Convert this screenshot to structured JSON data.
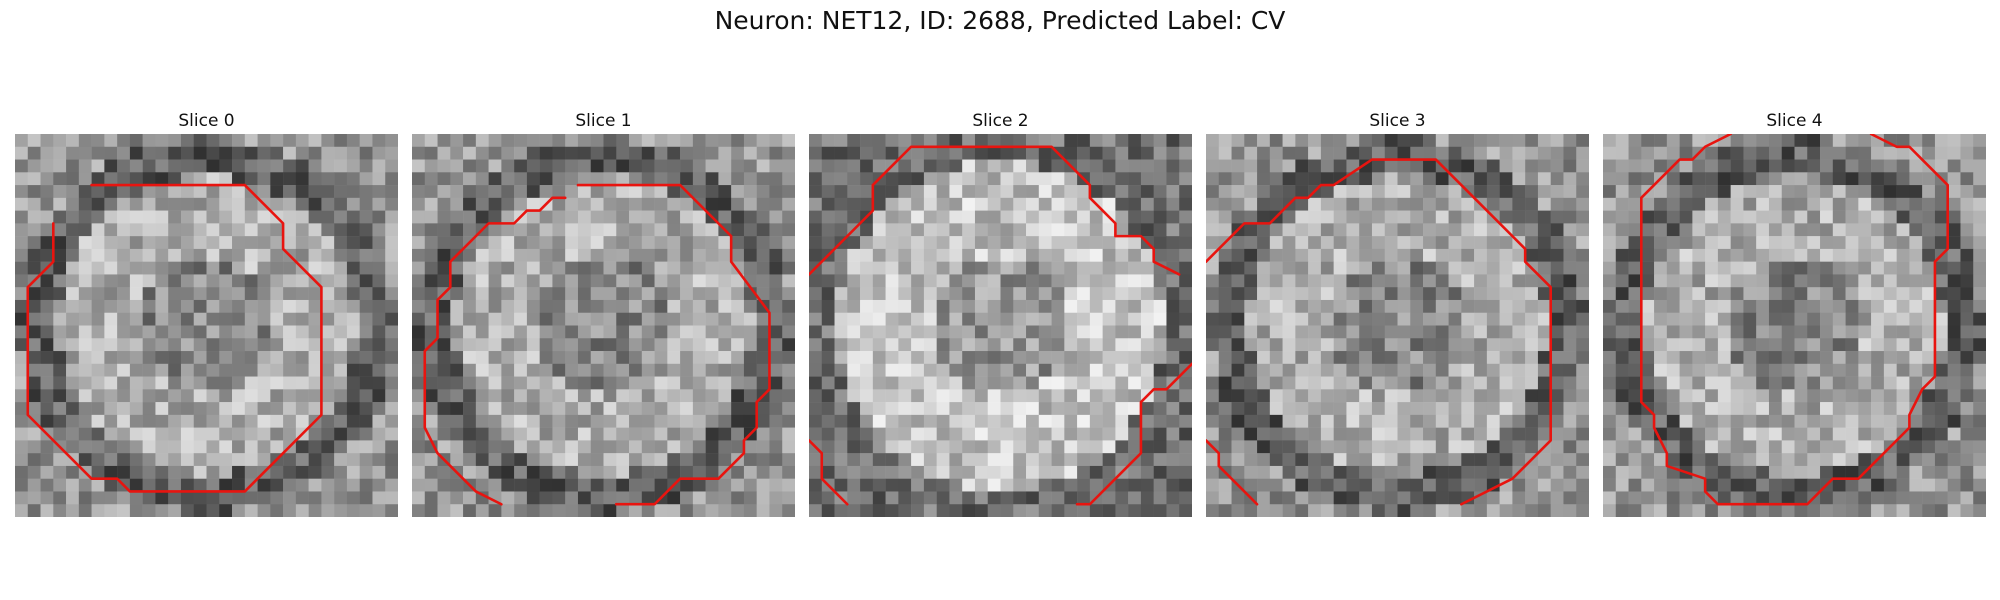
{
  "figure": {
    "title": "Neuron: NET12, ID: 2688, Predicted Label: CV"
  },
  "grid_size": 30,
  "contour_color": "#e8140f",
  "panels": [
    {
      "title": "Slice 0",
      "ring_color": "dark",
      "contours": [
        [
          [
            6,
            4
          ],
          [
            18,
            4
          ],
          [
            21,
            7
          ],
          [
            21,
            9
          ],
          [
            24,
            12
          ],
          [
            24,
            22
          ],
          [
            18,
            28
          ],
          [
            9,
            28
          ],
          [
            8,
            27
          ],
          [
            6,
            27
          ],
          [
            1,
            22
          ],
          [
            1,
            12
          ],
          [
            3,
            10
          ],
          [
            3,
            7
          ]
        ]
      ]
    },
    {
      "title": "Slice 1",
      "ring_color": "dark",
      "contours": [
        [
          [
            13,
            4
          ],
          [
            21,
            4
          ],
          [
            25,
            8
          ],
          [
            25,
            10
          ],
          [
            28,
            14
          ],
          [
            28,
            20
          ],
          [
            27,
            21
          ],
          [
            27,
            23
          ],
          [
            26,
            24
          ],
          [
            26,
            25
          ],
          [
            24,
            27
          ],
          [
            21,
            27
          ],
          [
            19,
            29
          ],
          [
            18,
            29
          ],
          [
            16,
            29
          ]
        ],
        [
          [
            7,
            29
          ],
          [
            5,
            28
          ],
          [
            2,
            25
          ],
          [
            1,
            23
          ],
          [
            1,
            17
          ],
          [
            2,
            16
          ],
          [
            2,
            13
          ],
          [
            3,
            12
          ],
          [
            3,
            10
          ],
          [
            4,
            9
          ],
          [
            6,
            7
          ],
          [
            8,
            7
          ],
          [
            9,
            6
          ],
          [
            10,
            6
          ],
          [
            11,
            5
          ],
          [
            12,
            5
          ]
        ]
      ]
    },
    {
      "title": "Slice 2",
      "ring_color": "light",
      "contours": [
        [
          [
            0,
            11
          ],
          [
            2,
            9
          ],
          [
            4,
            7
          ],
          [
            5,
            6
          ],
          [
            5,
            4
          ],
          [
            8,
            1
          ],
          [
            19,
            1
          ],
          [
            22,
            4
          ],
          [
            22,
            5
          ],
          [
            23,
            6
          ],
          [
            24,
            7
          ],
          [
            24,
            8
          ],
          [
            26,
            8
          ],
          [
            27,
            9
          ],
          [
            27,
            10
          ],
          [
            29,
            11
          ]
        ],
        [
          [
            21,
            29
          ],
          [
            22,
            29
          ],
          [
            25,
            26
          ],
          [
            26,
            25
          ],
          [
            26,
            21
          ],
          [
            27,
            20
          ],
          [
            28,
            20
          ],
          [
            30,
            18
          ]
        ],
        [
          [
            0,
            24
          ],
          [
            1,
            25
          ],
          [
            1,
            27
          ],
          [
            3,
            29
          ]
        ]
      ]
    },
    {
      "title": "Slice 3",
      "ring_color": "dark",
      "contours": [
        [
          [
            0,
            10
          ],
          [
            3,
            7
          ],
          [
            5,
            7
          ],
          [
            6,
            6
          ],
          [
            7,
            5
          ],
          [
            8,
            5
          ],
          [
            9,
            4
          ],
          [
            10,
            4
          ],
          [
            13,
            2
          ],
          [
            18,
            2
          ],
          [
            21,
            5
          ],
          [
            22,
            6
          ],
          [
            24,
            8
          ],
          [
            25,
            9
          ],
          [
            25,
            10
          ],
          [
            27,
            12
          ],
          [
            27,
            24
          ],
          [
            24,
            27
          ],
          [
            20,
            29
          ]
        ],
        [
          [
            0,
            24
          ],
          [
            1,
            25
          ],
          [
            1,
            26
          ],
          [
            2,
            27
          ],
          [
            3,
            28
          ],
          [
            4,
            29
          ]
        ]
      ]
    },
    {
      "title": "Slice 4",
      "ring_color": "dark",
      "contours": [
        [
          [
            21,
            0
          ],
          [
            23,
            1
          ],
          [
            24,
            1
          ],
          [
            25,
            2
          ],
          [
            27,
            4
          ],
          [
            27,
            9
          ],
          [
            26,
            10
          ],
          [
            26,
            19
          ],
          [
            25,
            20
          ],
          [
            24,
            22
          ],
          [
            24,
            23
          ],
          [
            23,
            24
          ],
          [
            22,
            25
          ],
          [
            21,
            26
          ],
          [
            20,
            27
          ],
          [
            18,
            27
          ],
          [
            17,
            28
          ],
          [
            16,
            29
          ],
          [
            9,
            29
          ],
          [
            8,
            28
          ],
          [
            8,
            27
          ],
          [
            5,
            26
          ],
          [
            5,
            25
          ],
          [
            4,
            23
          ],
          [
            4,
            22
          ],
          [
            3,
            21
          ],
          [
            3,
            5
          ],
          [
            4,
            4
          ],
          [
            5,
            3
          ],
          [
            6,
            2
          ],
          [
            7,
            2
          ],
          [
            8,
            1
          ],
          [
            10,
            0
          ]
        ]
      ]
    }
  ]
}
